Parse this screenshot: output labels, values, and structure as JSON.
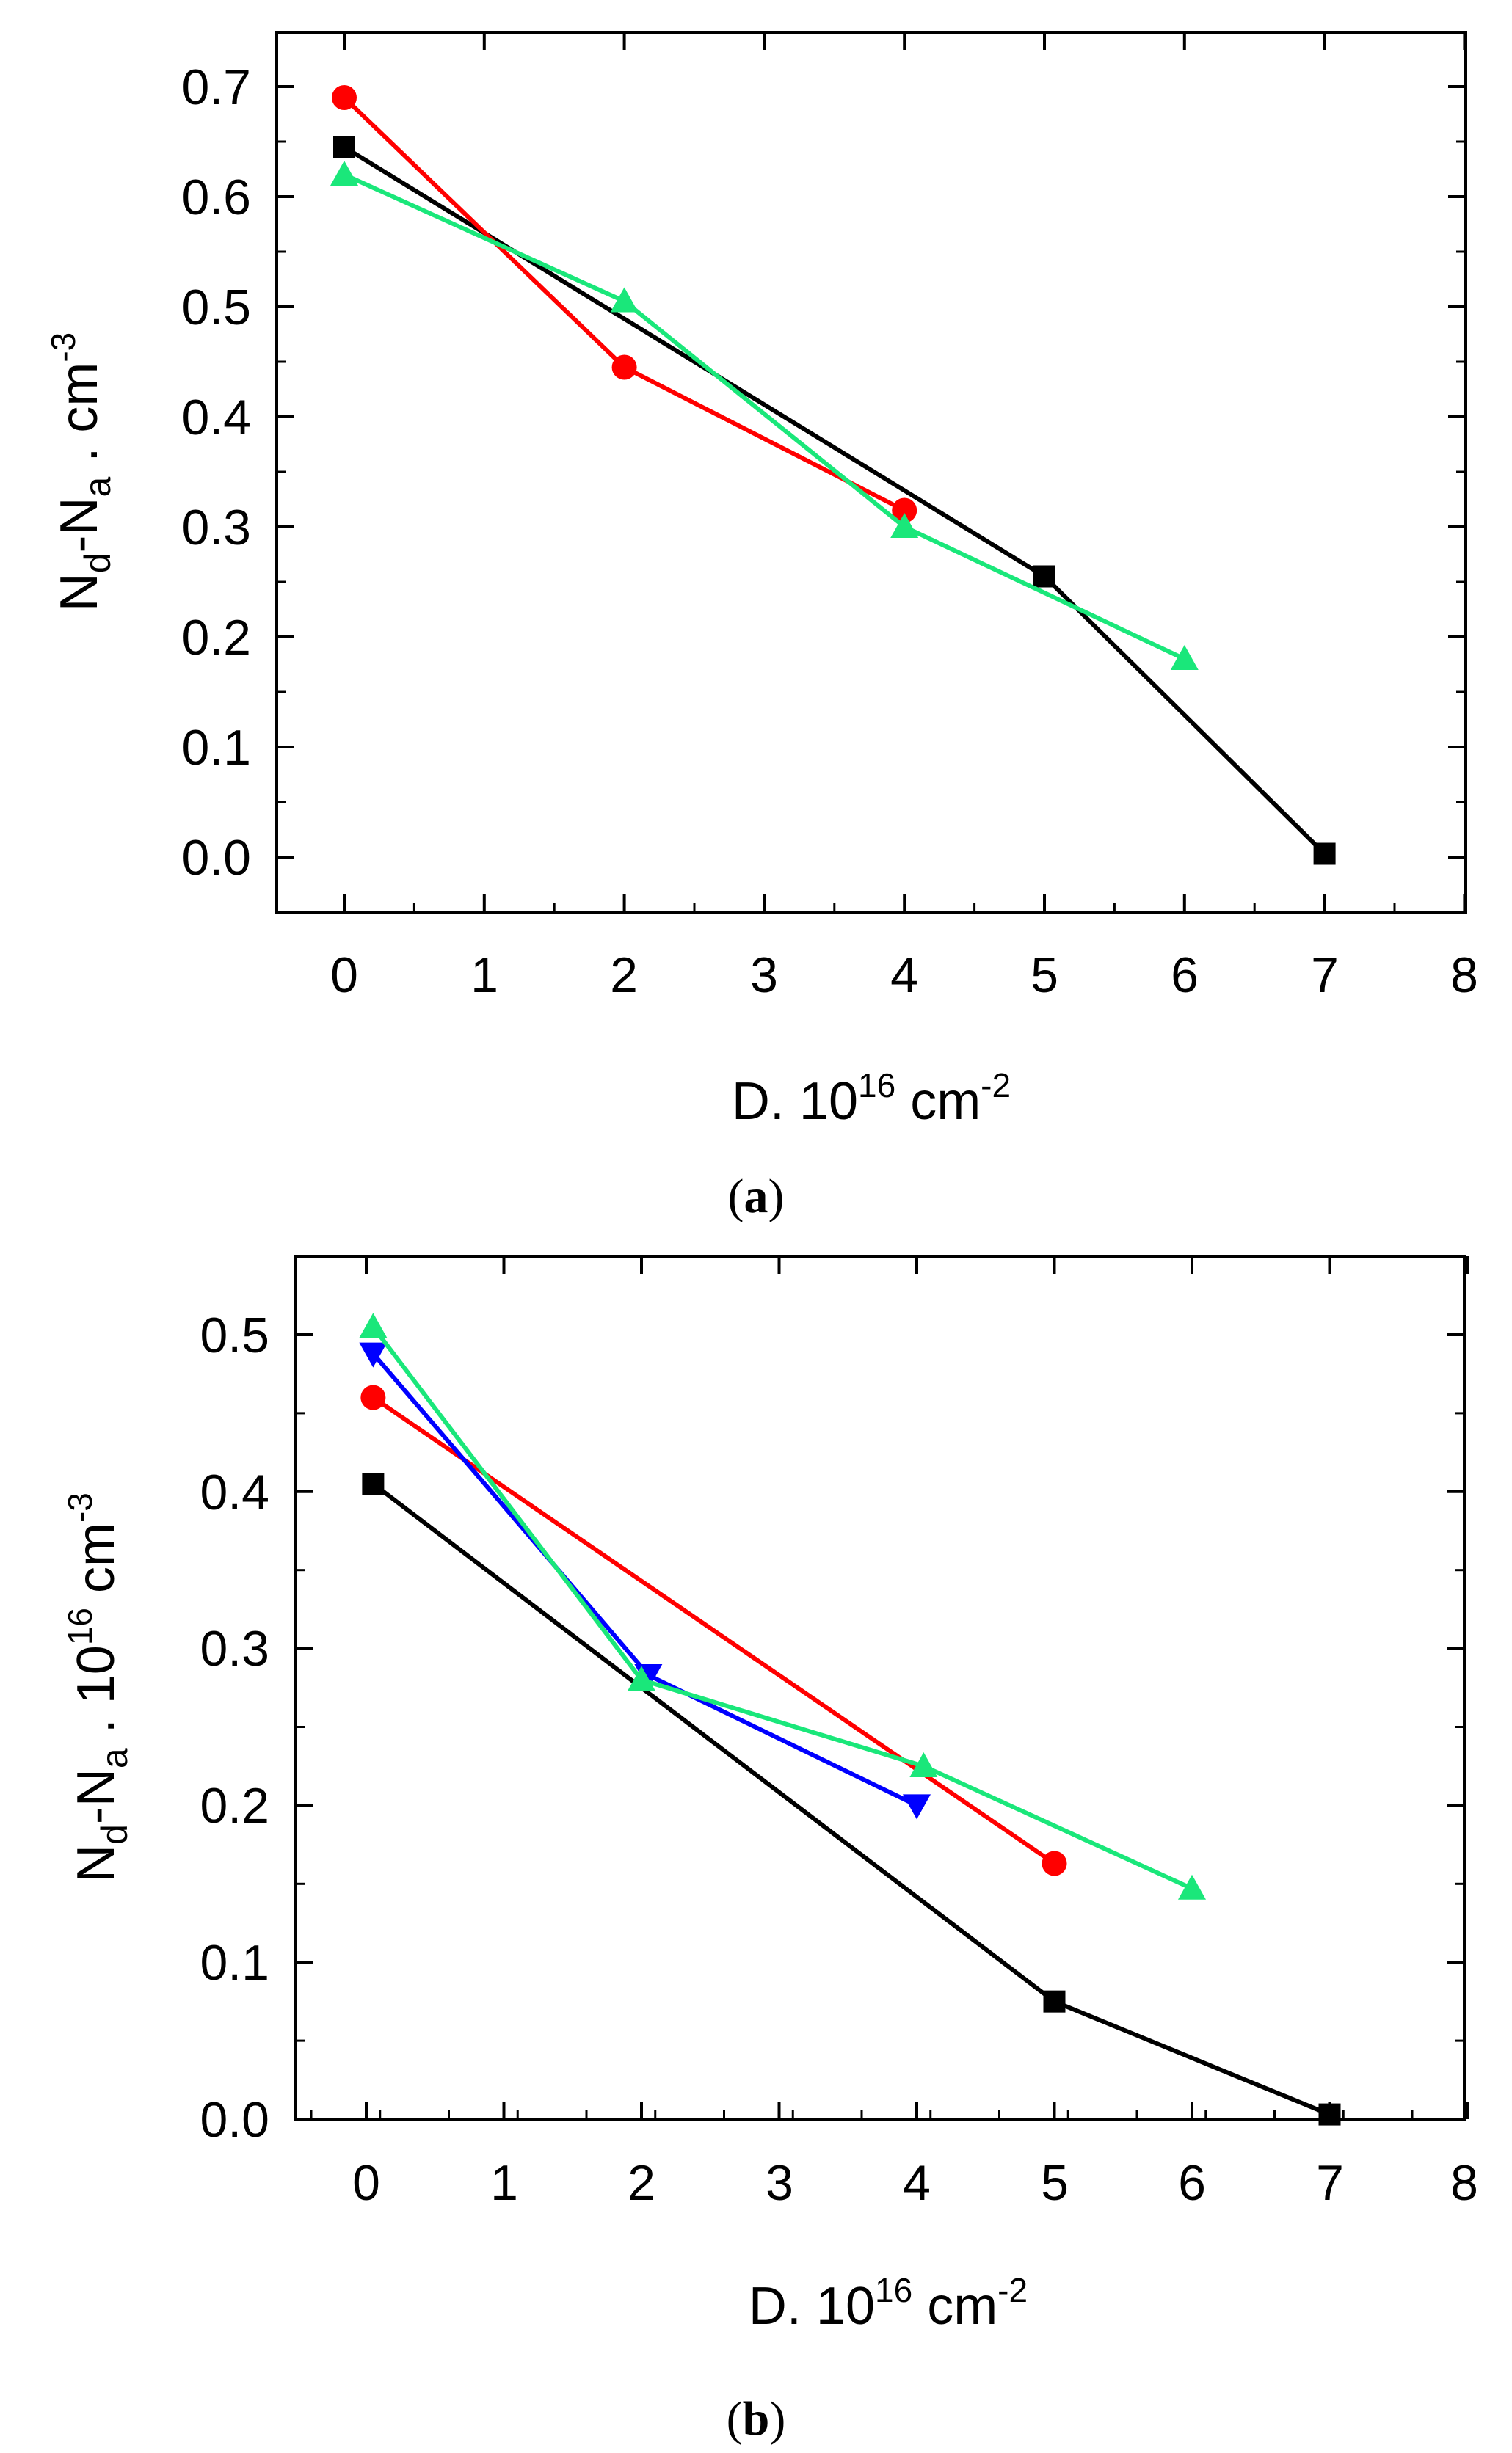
{
  "chart_data": [
    {
      "type": "line",
      "panel_label": "a",
      "xlabel": {
        "main": "D. 10",
        "sup1": "16",
        "mid": " cm",
        "sup2": "-2"
      },
      "ylabel": {
        "n1": "N",
        "sub1": "d",
        "dash": "-N",
        "sub2": "a",
        "tail": " . cm",
        "sup": "-3"
      },
      "xlim": [
        -0.5,
        8
      ],
      "ylim": [
        -0.05,
        0.75
      ],
      "xticks": [
        0,
        1,
        2,
        3,
        4,
        5,
        6,
        7,
        8
      ],
      "yticks": [
        0.0,
        0.1,
        0.2,
        0.3,
        0.4,
        0.5,
        0.6,
        0.7
      ],
      "ytick_labels": [
        "0.0",
        "0.1",
        "0.2",
        "0.3",
        "0.4",
        "0.5",
        "0.6",
        "0.7"
      ],
      "series": [
        {
          "name": "black squares",
          "color": "#000000",
          "marker": "square",
          "x": [
            0,
            5,
            7
          ],
          "y": [
            0.645,
            0.255,
            0.003
          ]
        },
        {
          "name": "red circles",
          "color": "#ff0000",
          "marker": "circle",
          "x": [
            0,
            2,
            4
          ],
          "y": [
            0.69,
            0.445,
            0.315
          ]
        },
        {
          "name": "green triangles",
          "color": "#1ae77a",
          "marker": "triangle-up",
          "x": [
            0,
            2,
            4,
            6
          ],
          "y": [
            0.62,
            0.505,
            0.3,
            0.18
          ]
        }
      ]
    },
    {
      "type": "line",
      "panel_label": "b",
      "xlabel": {
        "main": "D. 10",
        "sup1": "16",
        "mid": " cm",
        "sup2": "-2"
      },
      "ylabel": {
        "n1": "N",
        "sub1": "d",
        "dash": "-N",
        "sub2": "a",
        "tail": " . 10",
        "sup0": "16",
        "tail2": " cm",
        "sup": "-3"
      },
      "xlim": [
        -0.4,
        8
      ],
      "ylim": [
        0,
        0.55
      ],
      "xticks": [
        0,
        1,
        2,
        3,
        4,
        5,
        6,
        7,
        8
      ],
      "yticks": [
        0.0,
        0.1,
        0.2,
        0.3,
        0.4,
        0.5
      ],
      "ytick_labels": [
        "0.0",
        "0.1",
        "0.2",
        "0.3",
        "0.4",
        "0.5"
      ],
      "series": [
        {
          "name": "black squares",
          "color": "#000000",
          "marker": "square",
          "x": [
            0.05,
            5,
            7
          ],
          "y": [
            0.405,
            0.075,
            0.003
          ]
        },
        {
          "name": "red circles",
          "color": "#ff0000",
          "marker": "circle",
          "x": [
            0.05,
            5
          ],
          "y": [
            0.46,
            0.163
          ]
        },
        {
          "name": "blue triangles",
          "color": "#0000ff",
          "marker": "triangle-down",
          "x": [
            0.05,
            2.05,
            4
          ],
          "y": [
            0.488,
            0.283,
            0.2
          ]
        },
        {
          "name": "green triangles",
          "color": "#1ae77a",
          "marker": "triangle-up",
          "x": [
            0.05,
            2.0,
            4.05,
            6
          ],
          "y": [
            0.505,
            0.28,
            0.225,
            0.147
          ]
        }
      ]
    }
  ]
}
